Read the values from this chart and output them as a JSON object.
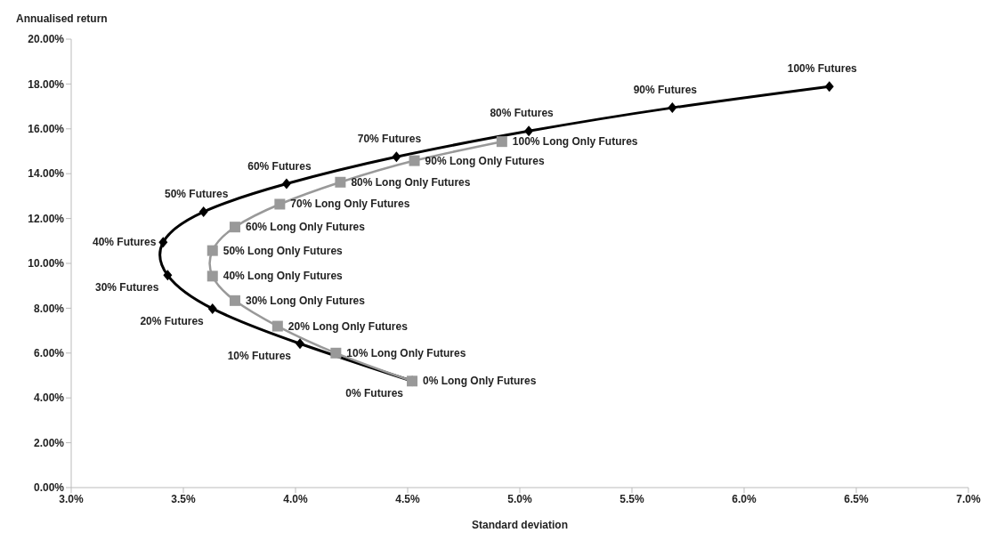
{
  "chart_data": {
    "type": "line",
    "xlabel": "Standard deviation",
    "ylabel": "Annualised return",
    "xlim": [
      3.0,
      7.0
    ],
    "xticks": [
      {
        "value": 3.0,
        "label": "3.0%"
      },
      {
        "value": 3.5,
        "label": "3.5%"
      },
      {
        "value": 4.0,
        "label": "4.0%"
      },
      {
        "value": 4.5,
        "label": "4.5%"
      },
      {
        "value": 5.0,
        "label": "5.0%"
      },
      {
        "value": 5.5,
        "label": "5.5%"
      },
      {
        "value": 6.0,
        "label": "6.0%"
      },
      {
        "value": 6.5,
        "label": "6.5%"
      },
      {
        "value": 7.0,
        "label": "7.0%"
      }
    ],
    "ylim": [
      0,
      20
    ],
    "yticks": [
      {
        "value": 0,
        "label": "0.00%"
      },
      {
        "value": 2,
        "label": "2.00%"
      },
      {
        "value": 4,
        "label": "4.00%"
      },
      {
        "value": 6,
        "label": "6.00%"
      },
      {
        "value": 8,
        "label": "8.00%"
      },
      {
        "value": 10,
        "label": "10.00%"
      },
      {
        "value": 12,
        "label": "12.00%"
      },
      {
        "value": 14,
        "label": "14.00%"
      },
      {
        "value": 16,
        "label": "16.00%"
      },
      {
        "value": 18,
        "label": "18.00%"
      },
      {
        "value": 20,
        "label": "20.00%"
      }
    ],
    "grid": false,
    "legend": false,
    "series": [
      {
        "color": "#000000",
        "marker": "diamond",
        "x": [
          4.52,
          4.02,
          3.63,
          3.43,
          3.41,
          3.59,
          3.96,
          4.45,
          5.04,
          5.68,
          6.38
        ],
        "values": [
          4.75,
          6.42,
          7.98,
          9.47,
          10.94,
          12.3,
          13.55,
          14.75,
          15.9,
          16.94,
          17.89
        ]
      },
      {
        "color": "#999999",
        "marker": "square",
        "x": [
          4.52,
          4.18,
          3.92,
          3.73,
          3.63,
          3.63,
          3.73,
          3.93,
          4.2,
          4.53,
          4.92
        ],
        "values": [
          4.75,
          6.0,
          7.2,
          8.34,
          9.43,
          10.57,
          11.62,
          12.64,
          13.62,
          14.58,
          15.43
        ]
      }
    ],
    "annotations": [
      {
        "text": "0% Futures",
        "x": 4.52,
        "y": 4.75
      },
      {
        "text": "10% Futures",
        "x": 4.02,
        "y": 6.42
      },
      {
        "text": "20% Futures",
        "x": 3.63,
        "y": 7.98
      },
      {
        "text": "30% Futures",
        "x": 3.43,
        "y": 9.47
      },
      {
        "text": "40% Futures",
        "x": 3.41,
        "y": 10.94
      },
      {
        "text": "50% Futures",
        "x": 3.59,
        "y": 12.3
      },
      {
        "text": "60% Futures",
        "x": 3.96,
        "y": 13.55
      },
      {
        "text": "70% Futures",
        "x": 4.45,
        "y": 14.75
      },
      {
        "text": "80% Futures",
        "x": 5.04,
        "y": 15.9
      },
      {
        "text": "90% Futures",
        "x": 5.68,
        "y": 16.94
      },
      {
        "text": "100% Futures",
        "x": 6.38,
        "y": 17.89
      },
      {
        "text": "0% Long Only Futures",
        "x": 4.52,
        "y": 4.75
      },
      {
        "text": "10% Long Only Futures",
        "x": 4.18,
        "y": 6.0
      },
      {
        "text": "20% Long Only Futures",
        "x": 3.92,
        "y": 7.2
      },
      {
        "text": "30% Long Only Futures",
        "x": 3.73,
        "y": 8.34
      },
      {
        "text": "40% Long Only Futures",
        "x": 3.63,
        "y": 9.43
      },
      {
        "text": "50% Long Only Futures",
        "x": 3.63,
        "y": 10.57
      },
      {
        "text": "60% Long Only Futures",
        "x": 3.73,
        "y": 11.62
      },
      {
        "text": "70% Long Only Futures",
        "x": 3.93,
        "y": 12.64
      },
      {
        "text": "80% Long Only Futures",
        "x": 4.2,
        "y": 13.62
      },
      {
        "text": "90% Long Only Futures",
        "x": 4.53,
        "y": 14.58
      },
      {
        "text": "100% Long Only Futures",
        "x": 4.92,
        "y": 15.43
      }
    ]
  }
}
